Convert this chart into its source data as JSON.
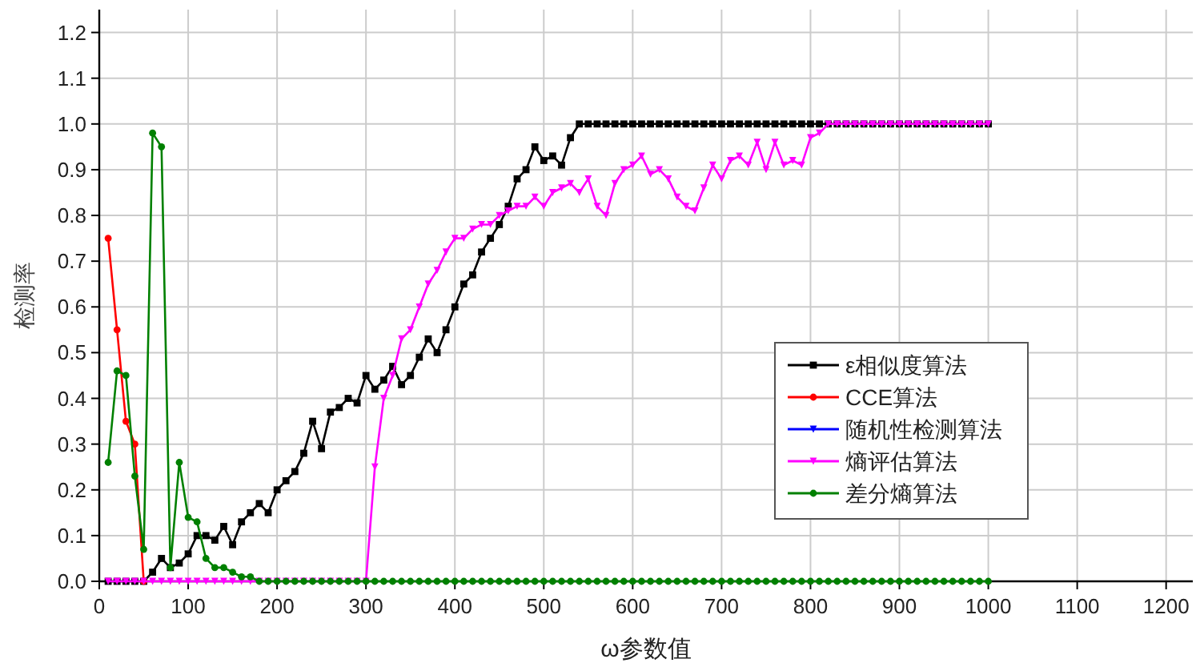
{
  "chart_data": {
    "type": "line",
    "xlabel": "ω参数值",
    "ylabel": "检测率",
    "x": [
      10,
      20,
      30,
      40,
      50,
      60,
      70,
      80,
      90,
      100,
      110,
      120,
      130,
      140,
      150,
      160,
      170,
      180,
      190,
      200,
      210,
      220,
      230,
      240,
      250,
      260,
      270,
      280,
      290,
      300,
      310,
      320,
      330,
      340,
      350,
      360,
      370,
      380,
      390,
      400,
      410,
      420,
      430,
      440,
      450,
      460,
      470,
      480,
      490,
      500,
      510,
      520,
      530,
      540,
      550,
      560,
      570,
      580,
      590,
      600,
      610,
      620,
      630,
      640,
      650,
      660,
      670,
      680,
      690,
      700,
      710,
      720,
      730,
      740,
      750,
      760,
      770,
      780,
      790,
      800,
      810,
      820,
      830,
      840,
      850,
      860,
      870,
      880,
      890,
      900,
      910,
      920,
      930,
      940,
      950,
      960,
      970,
      980,
      990,
      1000
    ],
    "xlim": [
      0,
      1230
    ],
    "ylim": [
      0,
      1.25
    ],
    "xticks": [
      0,
      100,
      200,
      300,
      400,
      500,
      600,
      700,
      800,
      900,
      1000,
      1100,
      1200
    ],
    "yticks": [
      {
        "value": 0,
        "label": "0.0"
      },
      {
        "value": 0.1,
        "label": "0.1"
      },
      {
        "value": 0.2,
        "label": "0.2"
      },
      {
        "value": 0.3,
        "label": "0.3"
      },
      {
        "value": 0.4,
        "label": "0.4"
      },
      {
        "value": 0.5,
        "label": "0.5"
      },
      {
        "value": 0.6,
        "label": "0.6"
      },
      {
        "value": 0.7,
        "label": "0.7"
      },
      {
        "value": 0.8,
        "label": "0.8"
      },
      {
        "value": 0.9,
        "label": "0.9"
      },
      {
        "value": 1,
        "label": "1.0"
      },
      {
        "value": 1.1,
        "label": "1.1"
      },
      {
        "value": 1.2,
        "label": "1.2"
      }
    ],
    "grid": true,
    "legend": "right",
    "line_style": "solid",
    "series": [
      {
        "name": "ε相似度算法",
        "color": "#000000",
        "marker": "square",
        "values": [
          0,
          0,
          0,
          0,
          0,
          0.02,
          0.05,
          0.03,
          0.04,
          0.06,
          0.1,
          0.1,
          0.09,
          0.12,
          0.08,
          0.13,
          0.15,
          0.17,
          0.15,
          0.2,
          0.22,
          0.24,
          0.28,
          0.35,
          0.29,
          0.37,
          0.38,
          0.4,
          0.39,
          0.45,
          0.42,
          0.44,
          0.47,
          0.43,
          0.45,
          0.49,
          0.53,
          0.5,
          0.55,
          0.6,
          0.65,
          0.67,
          0.72,
          0.75,
          0.78,
          0.82,
          0.88,
          0.9,
          0.95,
          0.92,
          0.93,
          0.91,
          0.97,
          1,
          1,
          1,
          1,
          1,
          1,
          1,
          1,
          1,
          1,
          1,
          1,
          1,
          1,
          1,
          1,
          1,
          1,
          1,
          1,
          1,
          1,
          1,
          1,
          1,
          1,
          1,
          1,
          1,
          1,
          1,
          1,
          1,
          1,
          1,
          1,
          1,
          1,
          1,
          1,
          1,
          1,
          1,
          1,
          1,
          1,
          1
        ]
      },
      {
        "name": "CCE算法",
        "color": "#ff0000",
        "marker": "circle",
        "values": [
          0.75,
          0.55,
          0.35,
          0.3,
          0,
          null,
          null,
          null,
          null,
          null,
          null,
          null,
          null,
          null,
          null,
          null,
          null,
          null,
          null,
          null,
          null,
          null,
          null,
          null,
          null,
          null,
          null,
          null,
          null,
          null,
          null,
          null,
          null,
          null,
          null,
          null,
          null,
          null,
          null,
          null,
          null,
          null,
          null,
          null,
          null,
          null,
          null,
          null,
          null,
          null,
          null,
          null,
          null,
          null,
          null,
          null,
          null,
          null,
          null,
          null,
          null,
          null,
          null,
          null,
          null,
          null,
          null,
          null,
          null,
          null,
          null,
          null,
          null,
          null,
          null,
          null,
          null,
          null,
          null,
          null,
          null,
          null,
          null,
          null,
          null,
          null,
          null,
          null,
          null,
          null,
          null,
          null,
          null,
          null,
          null,
          null,
          null,
          null,
          null,
          null
        ]
      },
      {
        "name": "随机性检测算法",
        "color": "#0000ff",
        "marker": "triangle",
        "values": [
          null,
          null,
          null,
          null,
          null,
          null,
          null,
          null,
          null,
          null,
          null,
          null,
          null,
          null,
          null,
          null,
          null,
          null,
          null,
          null,
          null,
          null,
          null,
          null,
          null,
          null,
          null,
          null,
          null,
          null,
          null,
          null,
          null,
          null,
          null,
          null,
          null,
          null,
          null,
          null,
          null,
          null,
          null,
          null,
          null,
          null,
          null,
          null,
          null,
          null,
          null,
          null,
          null,
          null,
          null,
          null,
          null,
          null,
          null,
          null,
          null,
          null,
          null,
          null,
          null,
          null,
          null,
          null,
          null,
          null,
          null,
          null,
          null,
          null,
          null,
          null,
          null,
          null,
          null,
          null,
          null,
          null,
          null,
          null,
          null,
          null,
          null,
          null,
          null,
          null,
          null,
          null,
          null,
          null,
          null,
          null,
          null,
          null,
          null,
          null
        ]
      },
      {
        "name": "熵评估算法",
        "color": "#ff00ff",
        "marker": "triangle",
        "values": [
          0,
          0,
          0,
          0,
          0,
          0,
          0,
          0,
          0,
          0,
          0,
          0,
          0,
          0,
          0,
          0,
          0,
          0,
          0,
          0,
          0,
          0,
          0,
          0,
          0,
          0,
          0,
          0,
          0,
          0,
          0.25,
          0.4,
          0.45,
          0.53,
          0.55,
          0.6,
          0.65,
          0.68,
          0.72,
          0.75,
          0.75,
          0.77,
          0.78,
          0.78,
          0.8,
          0.81,
          0.82,
          0.82,
          0.84,
          0.82,
          0.85,
          0.86,
          0.87,
          0.85,
          0.88,
          0.82,
          0.8,
          0.87,
          0.9,
          0.91,
          0.93,
          0.89,
          0.9,
          0.88,
          0.84,
          0.82,
          0.81,
          0.86,
          0.91,
          0.88,
          0.92,
          0.93,
          0.91,
          0.96,
          0.9,
          0.96,
          0.91,
          0.92,
          0.91,
          0.97,
          0.98,
          1,
          1,
          1,
          1,
          1,
          1,
          1,
          1,
          1,
          1,
          1,
          1,
          1,
          1,
          1,
          1,
          1,
          1,
          1
        ]
      },
      {
        "name": "差分熵算法",
        "color": "#008000",
        "marker": "circle",
        "values": [
          0.26,
          0.46,
          0.45,
          0.23,
          0.07,
          0.98,
          0.95,
          0.03,
          0.26,
          0.14,
          0.13,
          0.05,
          0.03,
          0.03,
          0.02,
          0.01,
          0.01,
          0,
          0,
          0,
          0,
          0,
          0,
          0,
          0,
          0,
          0,
          0,
          0,
          0,
          0,
          0,
          0,
          0,
          0,
          0,
          0,
          0,
          0,
          0,
          0,
          0,
          0,
          0,
          0,
          0,
          0,
          0,
          0,
          0,
          0,
          0,
          0,
          0,
          0,
          0,
          0,
          0,
          0,
          0,
          0,
          0,
          0,
          0,
          0,
          0,
          0,
          0,
          0,
          0,
          0,
          0,
          0,
          0,
          0,
          0,
          0,
          0,
          0,
          0,
          0,
          0,
          0,
          0,
          0,
          0,
          0,
          0,
          0,
          0,
          0,
          0,
          0,
          0,
          0,
          0,
          0,
          0,
          0,
          0
        ]
      }
    ]
  }
}
